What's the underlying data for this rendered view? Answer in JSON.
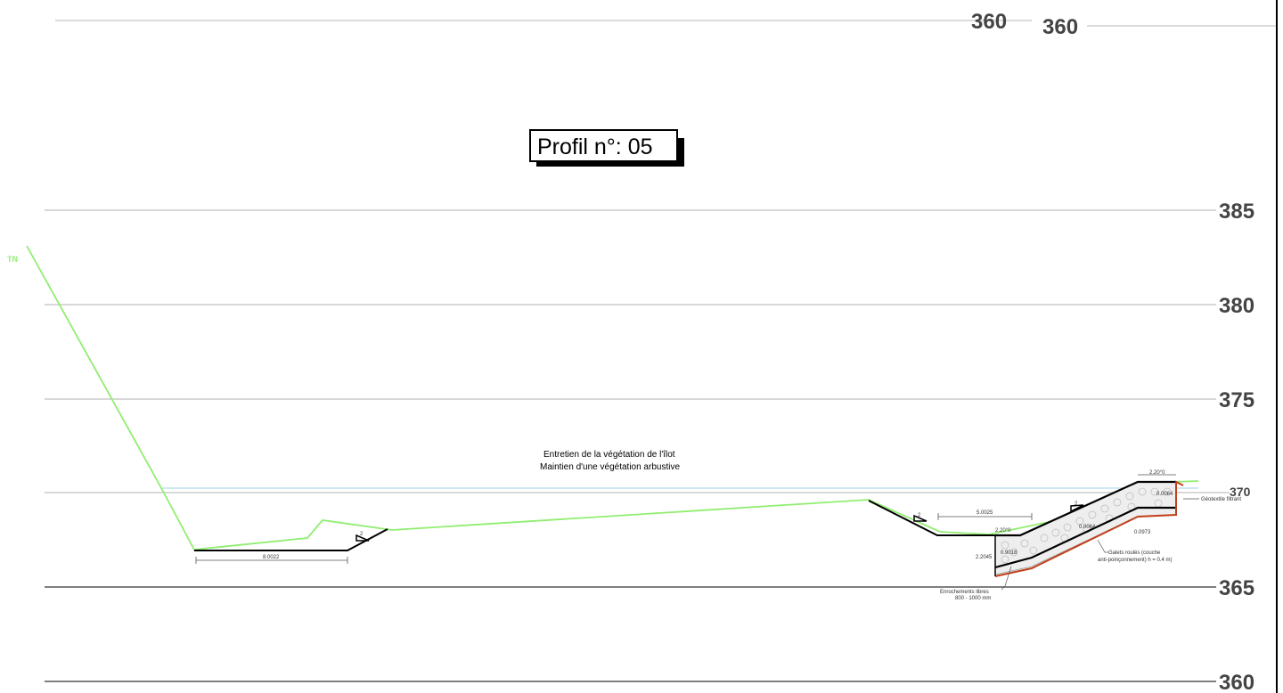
{
  "title": "Profil n°: 05",
  "top_labels": [
    "360",
    "360"
  ],
  "elevations": [
    {
      "label": "385",
      "value": 385
    },
    {
      "label": "380",
      "value": 380
    },
    {
      "label": "375",
      "value": 375
    },
    {
      "label": "370",
      "value": 370
    },
    {
      "label": "365",
      "value": 365
    },
    {
      "label": "360",
      "value": 360
    }
  ],
  "tn_label": "TN",
  "annotation": {
    "line1": "Entretien de la végétation de l'îlot",
    "line2": "Maintien d'une végétation arbustive"
  },
  "dimensions": {
    "left_channel": "8.0022",
    "middle_bench": "5.0025",
    "toe_width": "2.20°0",
    "top_width": "2.20°0",
    "toe_depth": "2.2045",
    "toe_thickness": "0.9018",
    "mid_thickness": "0.0064",
    "top_thickness": "0.0064",
    "top_right": "0.0973"
  },
  "labels": {
    "geotextile": "Géotextile filtrant",
    "galets_1": "Galets roulés (couche",
    "galets_2": "anti-poinçonnement) h = 0.4 m)",
    "enroch_1": "Enrochements libres",
    "enroch_2": "800 - 1000 mm"
  },
  "slope_marks": [
    "2",
    "2",
    "2"
  ],
  "colors": {
    "terrain": "#90ee70",
    "design": "#000000",
    "water": "#bfe0f0",
    "geotextile": "#c0401a",
    "grid": "#c8c8c8"
  }
}
